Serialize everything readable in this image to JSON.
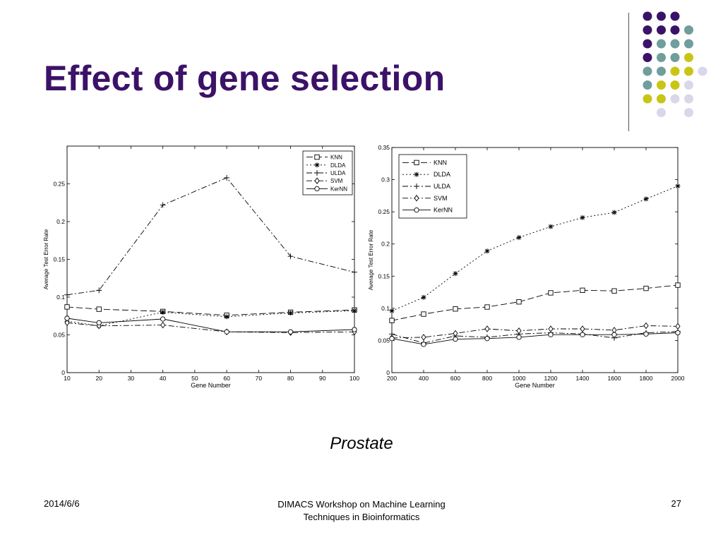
{
  "slide": {
    "title": "Effect of gene selection",
    "caption": "Prostate",
    "footer": {
      "date": "2014/6/6",
      "center_line1": "DIMACS Workshop on Machine Learning",
      "center_line2": "Techniques in Bioinformatics",
      "page": "27"
    }
  },
  "colors": {
    "title": "#3b1268",
    "dot_purple": "#3b1268",
    "dot_teal": "#6f9e9c",
    "dot_yellow": "#c9c516",
    "dot_lavender": "#d8d8ea"
  },
  "decor_dots": [
    [
      "purple",
      "purple",
      "purple",
      null
    ],
    [
      "purple",
      "purple",
      "purple",
      "teal"
    ],
    [
      "purple",
      "teal",
      "teal",
      "teal"
    ],
    [
      "purple",
      "teal",
      "teal",
      "yellow"
    ],
    [
      "teal",
      "teal",
      "yellow",
      "yellow",
      "lavender"
    ],
    [
      "teal",
      "yellow",
      "yellow",
      "lavender"
    ],
    [
      "yellow",
      "yellow",
      "lavender",
      "lavender"
    ],
    [
      null,
      "lavender",
      null,
      "lavender"
    ]
  ],
  "chart_data": [
    {
      "type": "line",
      "title": "",
      "xlabel": "Gene Number",
      "ylabel": "Average Test Error Rate",
      "xlim": [
        10,
        100
      ],
      "ylim": [
        0,
        0.3
      ],
      "xticks": [
        10,
        20,
        30,
        40,
        50,
        60,
        70,
        80,
        90,
        100
      ],
      "xtick_labels": [
        "10",
        "20",
        "30",
        "40",
        "50",
        "60",
        "70",
        "80",
        "90",
        "100"
      ],
      "yticks": [
        0,
        0.05,
        0.1,
        0.15,
        0.2,
        0.25
      ],
      "ytick_labels": [
        "0",
        "0.05",
        "0.1",
        "0.15",
        "0.2",
        "0.25"
      ],
      "grid": false,
      "legend": "top-right",
      "series": [
        {
          "name": "KNN",
          "marker": "square",
          "dash": "9,4",
          "x": [
            10,
            20,
            40,
            60,
            80,
            100
          ],
          "y": [
            0.087,
            0.084,
            0.081,
            0.076,
            0.08,
            0.083
          ]
        },
        {
          "name": "DLDA",
          "marker": "star",
          "dash": "2,3",
          "x": [
            10,
            20,
            40,
            60,
            80,
            100
          ],
          "y": [
            0.068,
            0.062,
            0.08,
            0.074,
            0.079,
            0.082
          ]
        },
        {
          "name": "ULDA",
          "marker": "plus",
          "dash": "8,3,2,3",
          "x": [
            10,
            20,
            40,
            60,
            80,
            100
          ],
          "y": [
            0.103,
            0.109,
            0.222,
            0.258,
            0.154,
            0.133
          ]
        },
        {
          "name": "SVM",
          "marker": "diamond",
          "dash": "8,3,2,3",
          "x": [
            10,
            20,
            40,
            60,
            80,
            100
          ],
          "y": [
            0.066,
            0.062,
            0.063,
            0.054,
            0.053,
            0.054
          ]
        },
        {
          "name": "KerNN",
          "marker": "circle",
          "dash": "",
          "x": [
            10,
            20,
            40,
            60,
            80,
            100
          ],
          "y": [
            0.072,
            0.066,
            0.071,
            0.054,
            0.054,
            0.057
          ]
        }
      ]
    },
    {
      "type": "line",
      "title": "",
      "xlabel": "Gene Number",
      "ylabel": "Average Test Error Rate",
      "xlim": [
        200,
        2000
      ],
      "ylim": [
        0,
        0.35
      ],
      "xticks": [
        200,
        400,
        600,
        800,
        1000,
        1200,
        1400,
        1600,
        1800,
        2000
      ],
      "xtick_labels": [
        "200",
        "400",
        "600",
        "800",
        "1000",
        "1200",
        "1400",
        "1600",
        "1800",
        "2000"
      ],
      "yticks": [
        0,
        0.05,
        0.1,
        0.15,
        0.2,
        0.25,
        0.3,
        0.35
      ],
      "ytick_labels": [
        "0",
        "0.05",
        "0.1",
        "0.15",
        "0.2",
        "0.25",
        "0.3",
        "0.35"
      ],
      "grid": false,
      "legend": "top-left",
      "series": [
        {
          "name": "KNN",
          "marker": "square",
          "dash": "9,4",
          "x": [
            200,
            400,
            600,
            800,
            1000,
            1200,
            1400,
            1600,
            1800,
            2000
          ],
          "y": [
            0.081,
            0.091,
            0.099,
            0.102,
            0.11,
            0.124,
            0.128,
            0.127,
            0.131,
            0.136
          ]
        },
        {
          "name": "DLDA",
          "marker": "star",
          "dash": "2,3",
          "x": [
            200,
            400,
            600,
            800,
            1000,
            1200,
            1400,
            1600,
            1800,
            2000
          ],
          "y": [
            0.096,
            0.117,
            0.154,
            0.189,
            0.21,
            0.227,
            0.241,
            0.249,
            0.27,
            0.29
          ]
        },
        {
          "name": "ULDA",
          "marker": "plus",
          "dash": "8,3,2,3",
          "x": [
            200,
            400,
            600,
            800,
            1000,
            1200,
            1400,
            1600,
            1800,
            2000
          ],
          "y": [
            0.06,
            0.046,
            0.057,
            0.055,
            0.06,
            0.062,
            0.06,
            0.054,
            0.062,
            0.064
          ]
        },
        {
          "name": "SVM",
          "marker": "diamond",
          "dash": "8,3,2,3",
          "x": [
            200,
            400,
            600,
            800,
            1000,
            1200,
            1400,
            1600,
            1800,
            2000
          ],
          "y": [
            0.054,
            0.055,
            0.061,
            0.068,
            0.065,
            0.068,
            0.068,
            0.066,
            0.073,
            0.072
          ]
        },
        {
          "name": "KerNN",
          "marker": "circle",
          "dash": "",
          "x": [
            200,
            400,
            600,
            800,
            1000,
            1200,
            1400,
            1600,
            1800,
            2000
          ],
          "y": [
            0.053,
            0.044,
            0.052,
            0.053,
            0.055,
            0.059,
            0.059,
            0.059,
            0.06,
            0.062
          ]
        }
      ]
    }
  ]
}
